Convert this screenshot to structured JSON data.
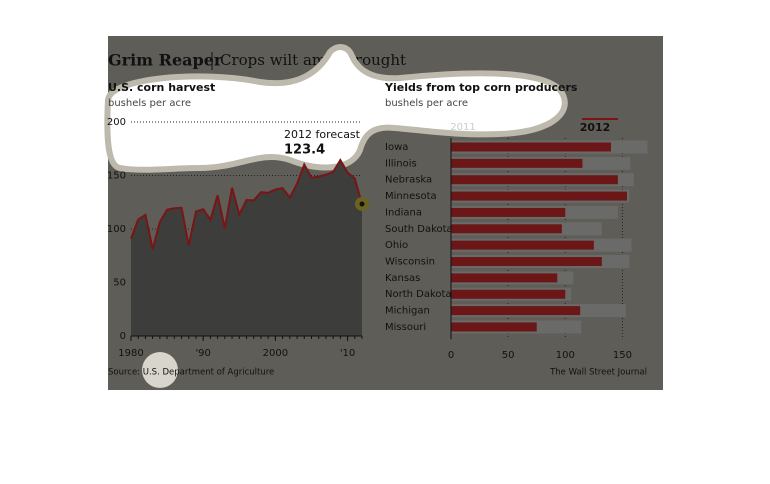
{
  "title": "Grim Reaper",
  "subtitle": "Crops wilt amid drought",
  "source": "Source: U.S. Department of Agriculture",
  "credit": "The Wall Street Journal",
  "chart_data": [
    {
      "type": "line",
      "title": "U.S. corn harvest",
      "y_label": "bushels per acre",
      "annotation": "2012 forecast",
      "x": [
        1980,
        1981,
        1982,
        1983,
        1984,
        1985,
        1986,
        1987,
        1988,
        1989,
        1990,
        1991,
        1992,
        1993,
        1994,
        1995,
        1996,
        1997,
        1998,
        1999,
        2000,
        2001,
        2002,
        2003,
        2004,
        2005,
        2006,
        2007,
        2008,
        2009,
        2010,
        2011,
        2012
      ],
      "series": [
        {
          "name": "U.S. corn harvest",
          "color": "#7a1515",
          "values": [
            91.0,
            108.9,
            113.2,
            81.1,
            106.7,
            118.0,
            119.4,
            119.8,
            84.6,
            116.3,
            118.5,
            108.6,
            131.5,
            100.7,
            138.6,
            113.5,
            127.1,
            126.7,
            134.4,
            133.8,
            136.9,
            138.2,
            129.3,
            142.2,
            160.3,
            147.9,
            149.1,
            150.7,
            153.3,
            164.4,
            152.6,
            147.2,
            123.4
          ]
        }
      ],
      "area_color": "#3d3d3b",
      "xlim": [
        1980,
        2012
      ],
      "xticks": [
        1980,
        {
          "value": 1990,
          "label": "'90"
        },
        2000,
        {
          "value": 2010,
          "label": "'10"
        }
      ],
      "ylim": [
        0,
        200
      ],
      "yticks": [
        0,
        50,
        100,
        150,
        200
      ],
      "grid": true
    },
    {
      "type": "bar",
      "orientation": "horizontal",
      "title": "Yields from top corn producers",
      "x_label": "bushels per acre",
      "categories": [
        "Iowa",
        "Illinois",
        "Nebraska",
        "Minnesota",
        "Indiana",
        "South Dakota",
        "Ohio",
        "Wisconsin",
        "Kansas",
        "North Dakota",
        "Michigan",
        "Missouri"
      ],
      "series": [
        {
          "name": "2011",
          "color": "#6a6a68",
          "values": [
            172,
            157,
            160,
            156,
            146,
            132,
            158,
            156,
            107,
            105,
            153,
            114
          ]
        },
        {
          "name": "2012",
          "color": "#6b1717",
          "values": [
            140,
            115,
            146,
            154,
            100,
            97,
            125,
            132,
            93,
            100,
            113,
            75
          ]
        }
      ],
      "xlim": [
        0,
        175
      ],
      "xticks": [
        0,
        50,
        100,
        150
      ],
      "grid": true
    }
  ]
}
